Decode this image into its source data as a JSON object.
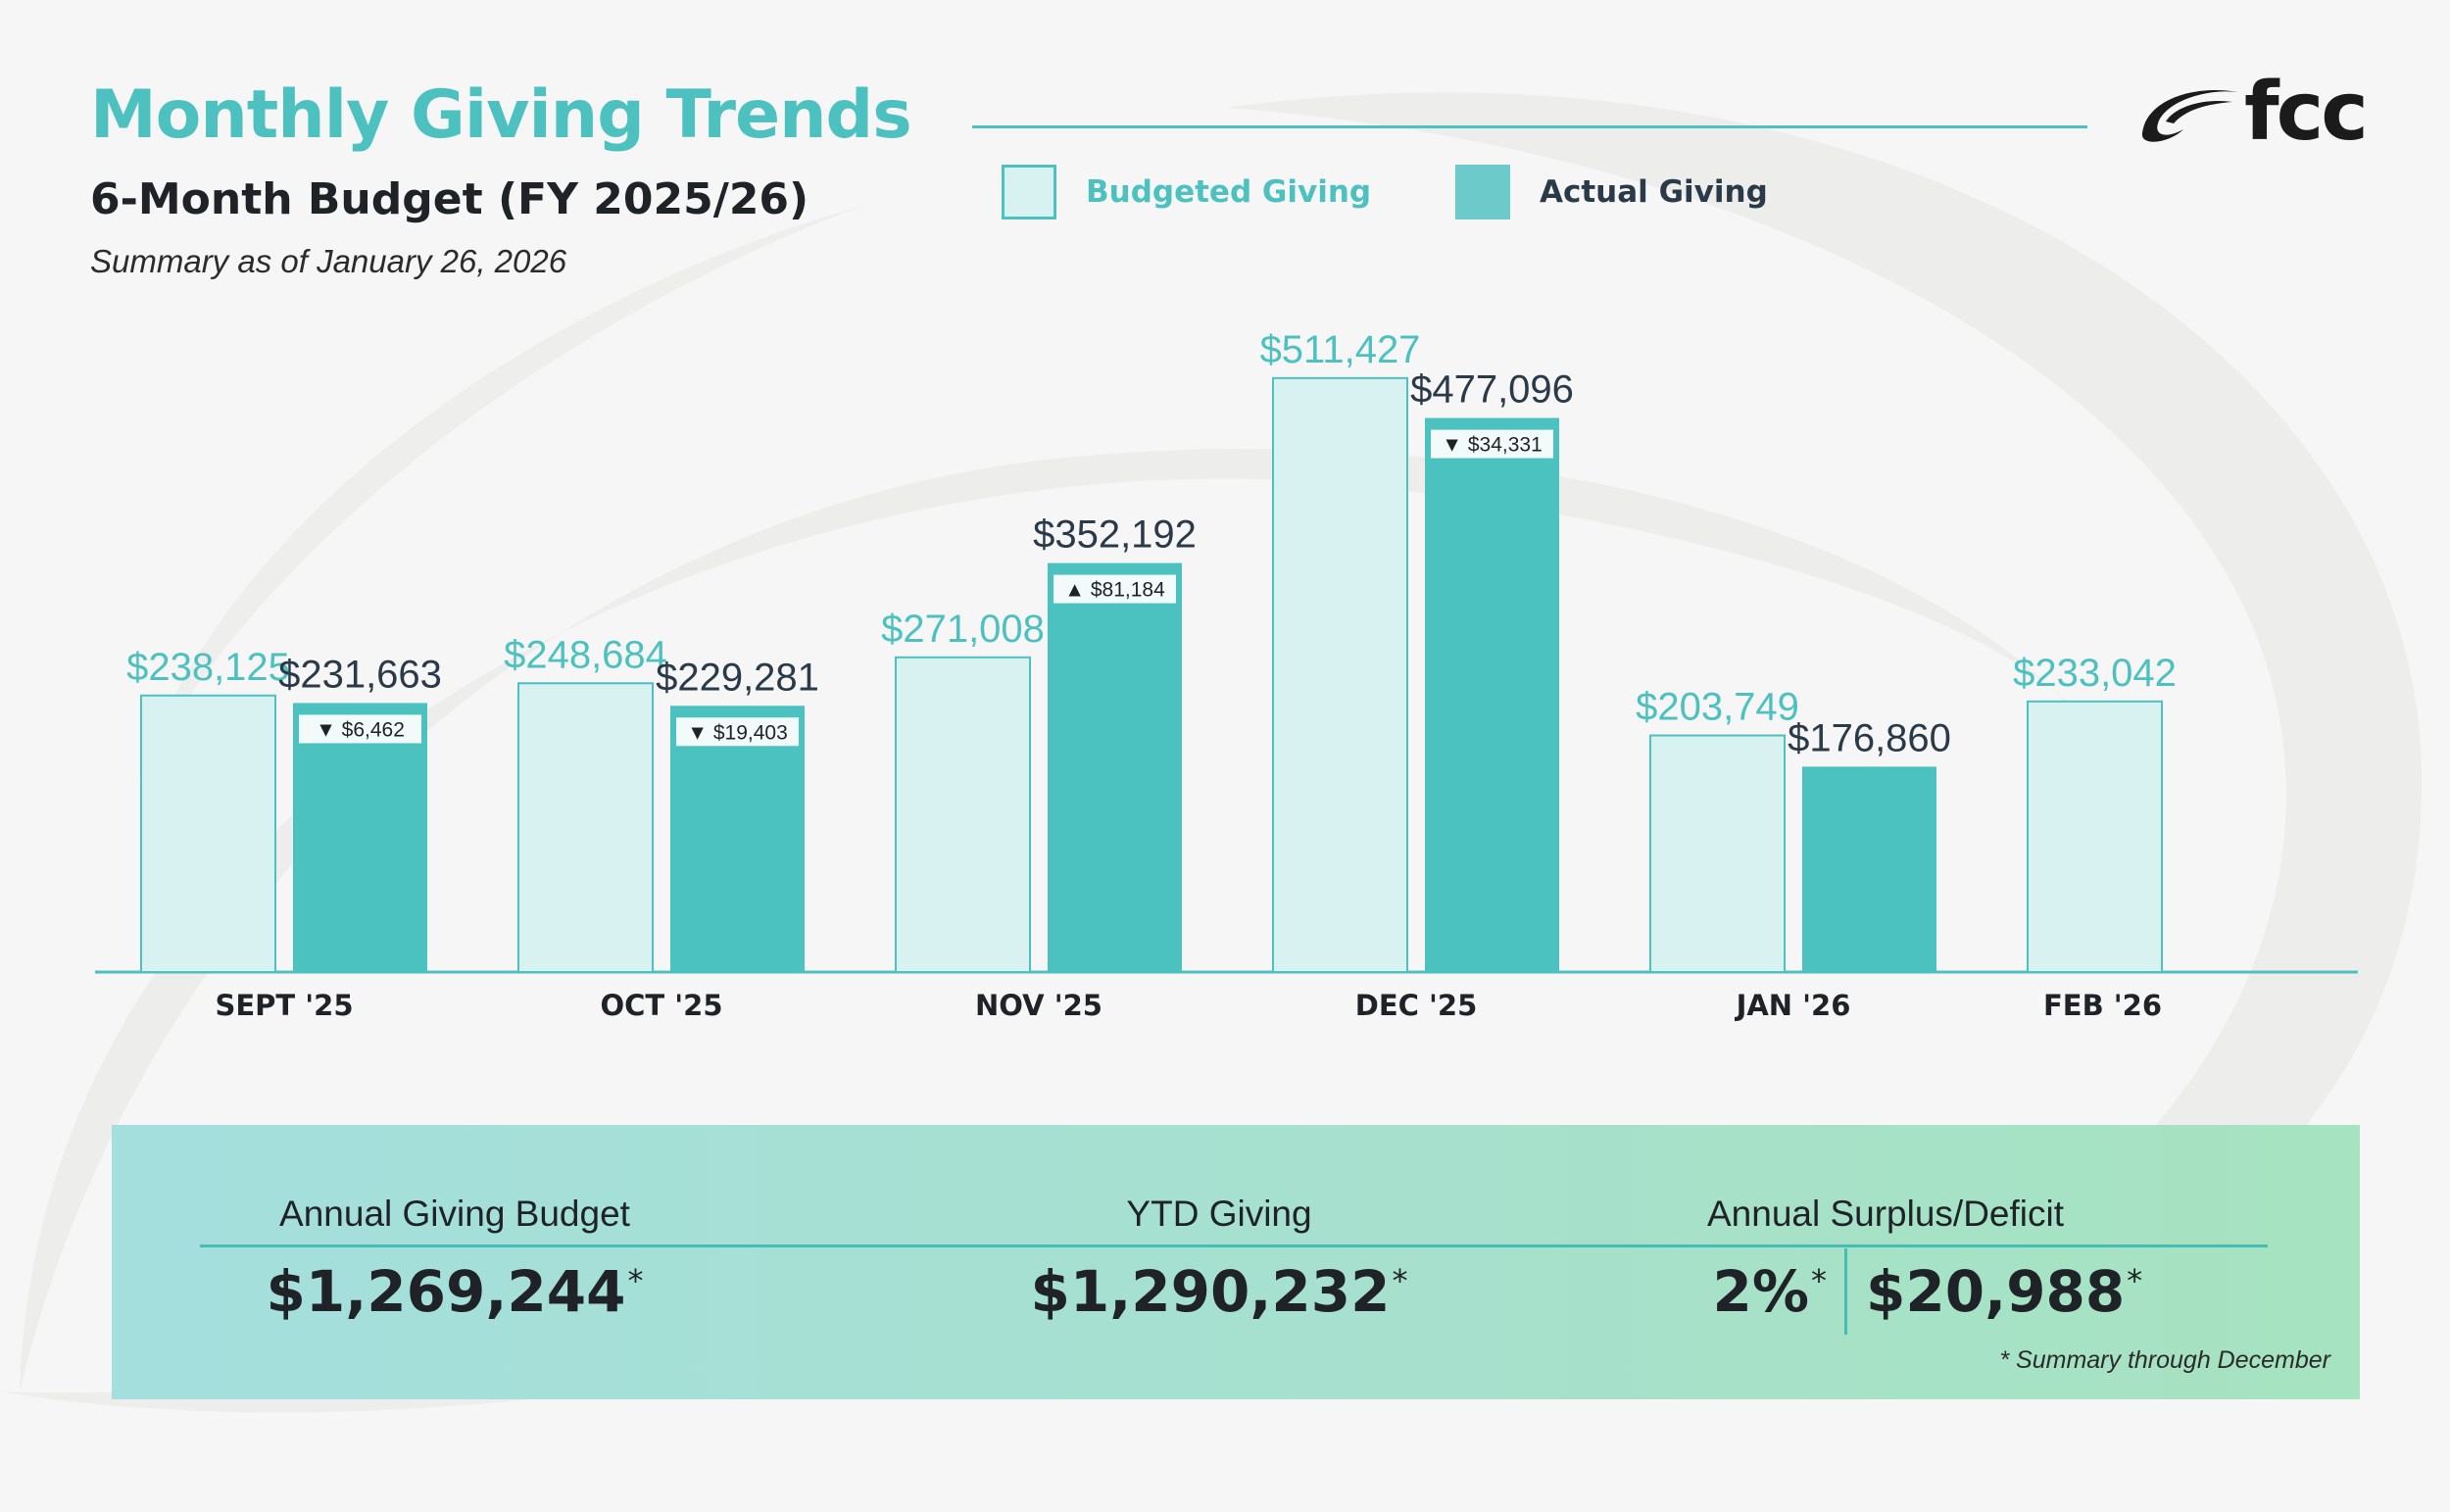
{
  "header": {
    "title": "Monthly Giving Trends",
    "subtitle": "6-Month Budget (FY 2025/26)",
    "as_of": "Summary as of January 26, 2026"
  },
  "legend": {
    "budgeted_label": "Budgeted Giving",
    "actual_label": "Actual Giving"
  },
  "logo": {
    "text": "fcc",
    "icon": "swoosh-logo-icon"
  },
  "colors": {
    "accent": "#4cc1c0",
    "budget_fill": "#d8f1f1",
    "budget_stroke": "#4cc1c0",
    "actual_fill": "#4bc1c0",
    "actual_value_text": "#2a3a48",
    "budget_value_text": "#4cc1c0",
    "axis_text": "#1f2328"
  },
  "chart_data": {
    "type": "bar",
    "categories": [
      "SEPT '25",
      "OCT '25",
      "NOV '25",
      "DEC '25",
      "JAN '26",
      "FEB '26"
    ],
    "series": [
      {
        "name": "Budgeted Giving",
        "values": [
          238125,
          248684,
          271008,
          511427,
          203749,
          233042
        ]
      },
      {
        "name": "Actual Giving",
        "values": [
          231663,
          229281,
          352192,
          477096,
          176860,
          null
        ]
      }
    ],
    "value_labels": {
      "budget": [
        "$238,125",
        "$248,684",
        "$271,008",
        "$511,427",
        "$203,749",
        "$233,042"
      ],
      "actual": [
        "$231,663",
        "$229,281",
        "$352,192",
        "$477,096",
        "$176,860",
        null
      ]
    },
    "variances": [
      {
        "direction": "down",
        "arrow": "▼",
        "label": "$6,462"
      },
      {
        "direction": "down",
        "arrow": "▼",
        "label": "$19,403"
      },
      {
        "direction": "up",
        "arrow": "▲",
        "label": "$81,184"
      },
      {
        "direction": "down",
        "arrow": "▼",
        "label": "$34,331"
      },
      null,
      null
    ],
    "ylim": [
      0,
      540000
    ],
    "grid": false,
    "legend_position": "top"
  },
  "summary": {
    "budget_label": "Annual Giving Budget",
    "budget_value": "$1,269,244",
    "budget_mark": "*",
    "ytd_label": "YTD Giving",
    "ytd_value": "$1,290,232",
    "ytd_mark": "*",
    "surplus_label": "Annual Surplus/Deficit",
    "surplus_percent": "2%",
    "surplus_percent_mark": "*",
    "surplus_value": "$20,988",
    "surplus_value_mark": "*",
    "footnote": "*  Summary through December"
  }
}
